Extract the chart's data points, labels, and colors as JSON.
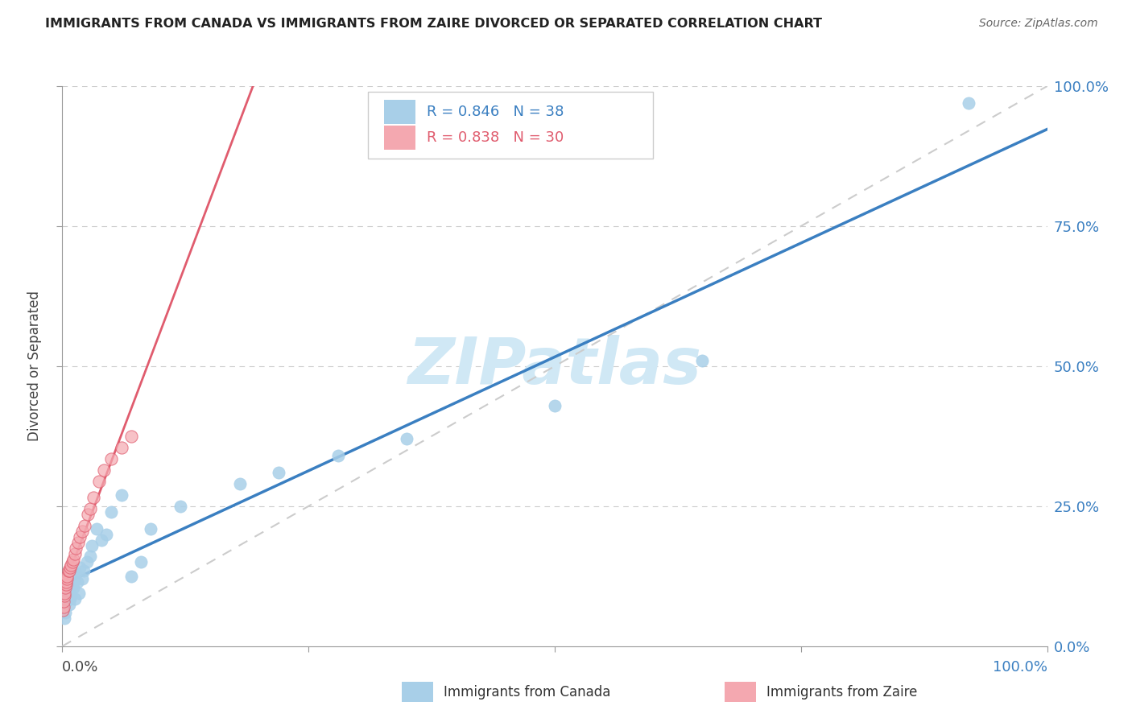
{
  "title": "IMMIGRANTS FROM CANADA VS IMMIGRANTS FROM ZAIRE DIVORCED OR SEPARATED CORRELATION CHART",
  "source": "Source: ZipAtlas.com",
  "ylabel": "Divorced or Separated",
  "y_tick_labels": [
    "0.0%",
    "25.0%",
    "50.0%",
    "75.0%",
    "100.0%"
  ],
  "x_tick_labels": [
    "0.0%",
    "100.0%"
  ],
  "legend_canada": "R = 0.846   N = 38",
  "legend_zaire": "R = 0.838   N = 30",
  "legend_label_canada": "Immigrants from Canada",
  "legend_label_zaire": "Immigrants from Zaire",
  "canada_dot_color": "#a8cfe8",
  "zaire_dot_color": "#f4a8b0",
  "canada_line_color": "#3a7fc1",
  "zaire_line_color": "#e05c6e",
  "diag_line_color": "#cccccc",
  "watermark_color": "#d0e8f5",
  "legend_text_canada_color": "#3a7fc1",
  "legend_text_zaire_color": "#e05c6e",
  "legend_n_color": "#e05c6e",
  "background_color": "#ffffff",
  "canada_x": [
    0.1,
    0.2,
    0.3,
    0.4,
    0.5,
    0.6,
    0.7,
    0.8,
    0.9,
    1.0,
    1.1,
    1.2,
    1.3,
    1.4,
    1.5,
    1.7,
    1.8,
    2.0,
    2.2,
    2.5,
    2.8,
    3.0,
    3.5,
    4.0,
    4.5,
    5.0,
    6.0,
    7.0,
    8.0,
    9.0,
    12.0,
    18.0,
    22.0,
    28.0,
    35.0,
    50.0,
    65.0,
    92.0
  ],
  "canada_y": [
    7.0,
    5.0,
    6.0,
    8.0,
    9.0,
    9.5,
    7.5,
    8.5,
    9.0,
    11.0,
    10.5,
    12.0,
    8.5,
    13.0,
    11.5,
    9.5,
    14.0,
    12.0,
    13.5,
    15.0,
    16.0,
    18.0,
    21.0,
    19.0,
    20.0,
    24.0,
    27.0,
    12.5,
    15.0,
    21.0,
    25.0,
    29.0,
    31.0,
    34.0,
    37.0,
    43.0,
    51.0,
    97.0
  ],
  "zaire_x": [
    0.05,
    0.1,
    0.15,
    0.2,
    0.25,
    0.3,
    0.35,
    0.4,
    0.45,
    0.5,
    0.6,
    0.7,
    0.8,
    0.9,
    1.0,
    1.1,
    1.3,
    1.4,
    1.6,
    1.8,
    2.0,
    2.3,
    2.6,
    2.8,
    3.2,
    3.7,
    4.2,
    5.0,
    6.0,
    7.0
  ],
  "zaire_y": [
    6.5,
    7.0,
    8.0,
    9.0,
    9.5,
    10.5,
    11.0,
    11.5,
    12.0,
    12.5,
    13.5,
    13.5,
    14.0,
    14.5,
    15.0,
    15.5,
    16.5,
    17.5,
    18.5,
    19.5,
    20.5,
    21.5,
    23.5,
    24.5,
    26.5,
    29.5,
    31.5,
    33.5,
    35.5,
    37.5
  ]
}
